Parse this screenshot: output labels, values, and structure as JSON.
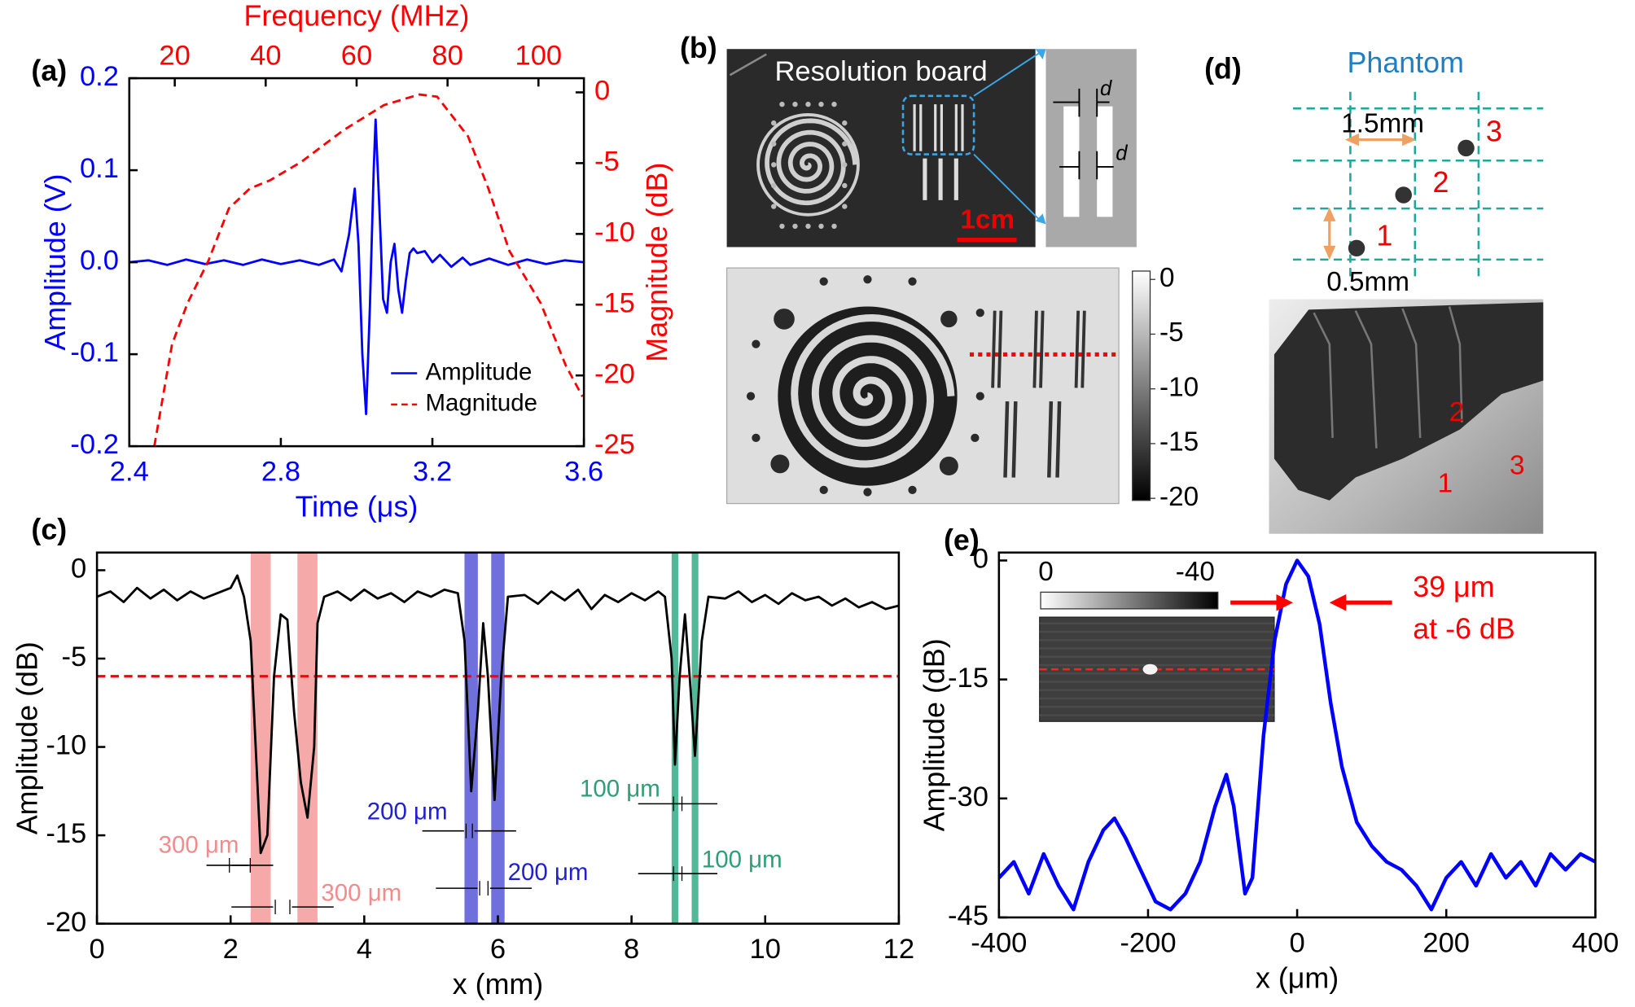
{
  "chart_data": [
    {
      "type": "line",
      "panel_label": "(a)",
      "xlabel": "Time (μs)",
      "ylabel": "Amplitude (V)",
      "x2label": "Frequency (MHz)",
      "y2label": "Magnitude (dB)",
      "axis_color": "#0000ff",
      "axis2_color": "#ff0000",
      "xlim": [
        2.4,
        3.6
      ],
      "xticks": [
        2.4,
        2.8,
        3.2,
        3.6
      ],
      "ylim": [
        -0.2,
        0.2
      ],
      "yticks": [
        -0.2,
        -0.1,
        {
          "value": 0,
          "label": "0.0"
        },
        0.1,
        0.2
      ],
      "x2lim": [
        10,
        110
      ],
      "x2ticks": [
        20,
        40,
        60,
        80,
        100
      ],
      "y2lim": [
        -25,
        1
      ],
      "y2ticks": [
        -25,
        -20,
        -15,
        -10,
        -5,
        0
      ],
      "legend": "lower right",
      "series": [
        {
          "name": "Amplitude",
          "color": "#0000ff",
          "x": [
            2.4,
            2.45,
            2.5,
            2.55,
            2.6,
            2.65,
            2.7,
            2.75,
            2.8,
            2.85,
            2.9,
            2.94,
            2.96,
            2.98,
            2.995,
            3.005,
            3.015,
            3.025,
            3.035,
            3.045,
            3.05,
            3.06,
            3.07,
            3.08,
            3.09,
            3.1,
            3.11,
            3.12,
            3.13,
            3.14,
            3.15,
            3.16,
            3.18,
            3.2,
            3.22,
            3.25,
            3.28,
            3.3,
            3.35,
            3.4,
            3.45,
            3.5,
            3.55,
            3.6
          ],
          "values": [
            0.0,
            0.002,
            -0.003,
            0.003,
            -0.002,
            0.002,
            -0.003,
            0.003,
            -0.002,
            0.002,
            -0.003,
            0.003,
            -0.01,
            0.03,
            0.08,
            0.02,
            -0.1,
            -0.165,
            -0.05,
            0.1,
            0.155,
            0.06,
            -0.04,
            -0.055,
            0.0,
            0.02,
            -0.03,
            -0.055,
            -0.02,
            0.01,
            0.015,
            0.01,
            0.012,
            0.0,
            0.008,
            -0.005,
            0.005,
            -0.003,
            0.004,
            -0.003,
            0.003,
            -0.002,
            0.002,
            0.0
          ]
        },
        {
          "name": "Magnitude",
          "color": "#ff0000",
          "axis": "y2",
          "dashed": true,
          "x": [
            15.5,
            19.4,
            22.8,
            27.4,
            31.9,
            36.5,
            41,
            47.9,
            57,
            66,
            73.8,
            77.7,
            84.5,
            89,
            93.6,
            100.5,
            106,
            109.7
          ],
          "values": [
            -25,
            -17.8,
            -14.9,
            -11.9,
            -8.2,
            -6.8,
            -6.2,
            -4.9,
            -2.7,
            -0.9,
            -0.15,
            -0.3,
            -3.1,
            -6.8,
            -11.2,
            -14.9,
            -19.3,
            -21.5
          ]
        }
      ]
    },
    {
      "type": "line",
      "panel_label": "(c)",
      "xlabel": "x (mm)",
      "ylabel": "Amplitude (dB)",
      "xlim": [
        0,
        12
      ],
      "xticks": [
        0,
        2,
        4,
        6,
        8,
        10,
        12
      ],
      "ylim": [
        -20,
        1
      ],
      "yticks": [
        -20,
        -15,
        -10,
        -5,
        0
      ],
      "reference_line": -6,
      "reference_color": "#ff0000",
      "bands": [
        {
          "x": [
            2.3,
            2.6
          ],
          "color": "#f4a0a0"
        },
        {
          "x": [
            3.0,
            3.3
          ],
          "color": "#f4a0a0"
        },
        {
          "x": [
            5.5,
            5.7
          ],
          "color": "#6060d8"
        },
        {
          "x": [
            5.9,
            6.1
          ],
          "color": "#6060d8"
        },
        {
          "x": [
            8.6,
            8.7
          ],
          "color": "#40b08c"
        },
        {
          "x": [
            8.9,
            9.0
          ],
          "color": "#40b08c"
        }
      ],
      "annotations": [
        {
          "text": "300 μm",
          "color": "#f08c8c"
        },
        {
          "text": "300 μm",
          "color": "#f08c8c"
        },
        {
          "text": "200 μm",
          "color": "#2020d0"
        },
        {
          "text": "200 μm",
          "color": "#2020d0"
        },
        {
          "text": "100 μm",
          "color": "#2e9e76"
        },
        {
          "text": "100 μm",
          "color": "#2e9e76"
        }
      ],
      "series": [
        {
          "color": "#000000",
          "x": [
            0,
            0.2,
            0.4,
            0.6,
            0.8,
            1.0,
            1.2,
            1.4,
            1.6,
            1.8,
            2.0,
            2.1,
            2.2,
            2.3,
            2.4,
            2.45,
            2.55,
            2.65,
            2.75,
            2.85,
            2.95,
            3.05,
            3.15,
            3.25,
            3.3,
            3.4,
            3.6,
            3.8,
            4.0,
            4.2,
            4.4,
            4.6,
            4.8,
            5.0,
            5.2,
            5.4,
            5.5,
            5.6,
            5.7,
            5.78,
            5.85,
            5.95,
            6.05,
            6.15,
            6.4,
            6.6,
            6.8,
            7.0,
            7.2,
            7.4,
            7.6,
            7.8,
            8.0,
            8.2,
            8.4,
            8.5,
            8.6,
            8.65,
            8.72,
            8.8,
            8.87,
            8.95,
            9.05,
            9.15,
            9.4,
            9.6,
            9.8,
            10.0,
            10.2,
            10.4,
            10.6,
            10.8,
            11.0,
            11.2,
            11.4,
            11.6,
            11.8,
            12.0
          ],
          "values": [
            -1.5,
            -1.2,
            -1.8,
            -1.0,
            -1.6,
            -1.1,
            -1.7,
            -1.2,
            -1.6,
            -1.3,
            -1.0,
            -0.3,
            -1.5,
            -4,
            -12,
            -16,
            -15,
            -6,
            -2.5,
            -2.8,
            -8,
            -12,
            -14,
            -10,
            -3,
            -1.5,
            -1.2,
            -1.7,
            -1.1,
            -1.6,
            -1.3,
            -1.8,
            -1.2,
            -1.5,
            -1.1,
            -1.3,
            -4,
            -12.5,
            -8,
            -3,
            -6,
            -13,
            -6,
            -1.5,
            -1.4,
            -1.9,
            -1.2,
            -1.7,
            -1.1,
            -2.2,
            -1.4,
            -1.8,
            -1.3,
            -1.7,
            -1.2,
            -1.5,
            -5,
            -11,
            -6,
            -2.5,
            -6,
            -10.5,
            -4,
            -1.5,
            -1.6,
            -1.2,
            -1.8,
            -1.4,
            -1.9,
            -1.3,
            -1.7,
            -1.5,
            -2.0,
            -1.6,
            -2.1,
            -1.8,
            -2.2,
            -2.0
          ]
        }
      ]
    },
    {
      "type": "line",
      "panel_label": "(e)",
      "xlabel": "x (μm)",
      "ylabel": "Amplitude (dB)",
      "xlim": [
        -400,
        400
      ],
      "xticks": [
        -400,
        -200,
        0,
        200,
        400
      ],
      "ylim": [
        -45,
        1
      ],
      "yticks": [
        -45,
        -30,
        -15,
        0
      ],
      "annotations": [
        {
          "text": "39 μm",
          "color": "#ff0000"
        },
        {
          "text": "at -6 dB",
          "color": "#ff0000"
        }
      ],
      "inset": {
        "colorbar_ticks": [
          0,
          -40
        ]
      },
      "series": [
        {
          "color": "#0000ff",
          "x": [
            -400,
            -380,
            -360,
            -340,
            -320,
            -300,
            -280,
            -260,
            -245,
            -230,
            -210,
            -190,
            -170,
            -150,
            -130,
            -110,
            -95,
            -85,
            -70,
            -60,
            -45,
            -30,
            -15,
            0,
            15,
            30,
            45,
            60,
            80,
            100,
            120,
            140,
            160,
            180,
            200,
            220,
            240,
            260,
            280,
            300,
            320,
            340,
            360,
            380,
            400
          ],
          "values": [
            -40,
            -38,
            -42,
            -37,
            -41,
            -44,
            -38,
            -34,
            -32.5,
            -35,
            -39,
            -43,
            -44,
            -42,
            -38,
            -31,
            -27,
            -31,
            -42,
            -40,
            -22,
            -10,
            -3,
            0,
            -2,
            -8,
            -18,
            -26,
            -33,
            -36,
            -38,
            -39,
            -41,
            -44,
            -40,
            -38,
            -41,
            -37,
            -40,
            -38,
            -41,
            -37,
            -39,
            -37,
            -38
          ]
        }
      ]
    }
  ],
  "panel_b": {
    "label": "(b)",
    "title": "Resolution board",
    "scale_bar": "1cm",
    "d_labels": [
      "d",
      "d"
    ],
    "colorbar_ticks": [
      0,
      -5,
      -10,
      -15,
      -20
    ]
  },
  "panel_d": {
    "label": "(d)",
    "title": "Phantom",
    "dimensions": [
      "1.5mm",
      "0.5mm"
    ],
    "target_labels": [
      "1",
      "2",
      "3"
    ],
    "photo_labels": [
      "2",
      "1",
      "3"
    ]
  }
}
